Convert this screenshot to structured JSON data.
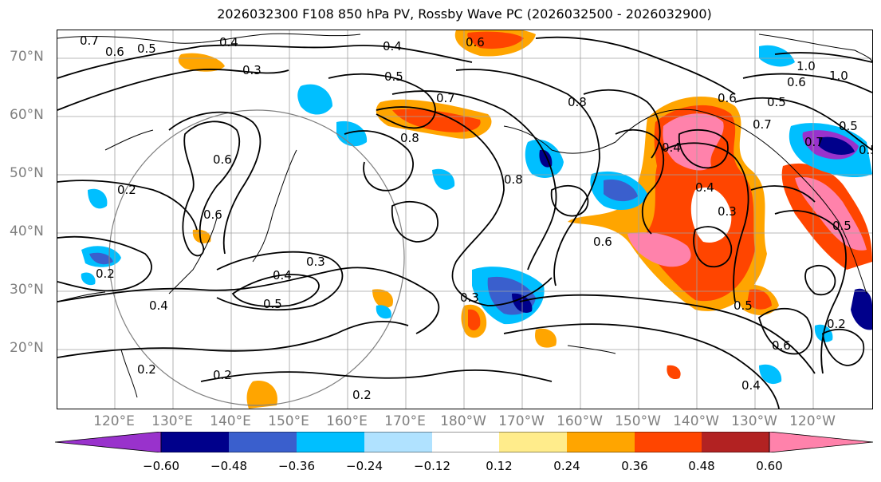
{
  "title": "2026032300 F108 850 hPa PV, Rossby Wave PC (2026032500 - 2026032900)",
  "map": {
    "lat_labels": [
      "70°N",
      "60°N",
      "50°N",
      "40°N",
      "30°N",
      "20°N"
    ],
    "lon_labels": [
      "120°E",
      "130°E",
      "140°E",
      "150°E",
      "160°E",
      "170°E",
      "180°W",
      "170°W",
      "160°W",
      "150°W",
      "140°W",
      "130°W",
      "120°W"
    ],
    "contour_labels": [
      "0.7",
      "0.6",
      "0.5",
      "0.4",
      "0.3",
      "0.4",
      "0.5",
      "0.6",
      "0.7",
      "0.8",
      "0.8",
      "0.6",
      "0.6",
      "0.2",
      "0.3",
      "0.4",
      "0.5",
      "0.4",
      "0.3",
      "0.2",
      "0.2",
      "0.2",
      "0.3",
      "0.6",
      "0.8",
      "0.4",
      "0.4",
      "0.5",
      "0.5",
      "0.6",
      "0.7",
      "0.5",
      "1.0",
      "1.0",
      "0.6",
      "0.7",
      "0.5",
      "0.5",
      "0.2",
      "0.2",
      "0.6",
      "0.4"
    ],
    "colors": {
      "coast": "#000000",
      "grid": "#a0a0a0",
      "contour": "#000000",
      "circle": "#808080"
    }
  },
  "colorbar": {
    "ticks": [
      "−0.60",
      "−0.48",
      "−0.36",
      "−0.24",
      "−0.12",
      "0.12",
      "0.24",
      "0.36",
      "0.48",
      "0.60"
    ],
    "colors": [
      "#9932cc",
      "#00008b",
      "#3a5fcd",
      "#00bfff",
      "#b0e2ff",
      "#ffffff",
      "#ffec8b",
      "#ffa500",
      "#ff4500",
      "#b22222",
      "#ff82ab"
    ]
  }
}
